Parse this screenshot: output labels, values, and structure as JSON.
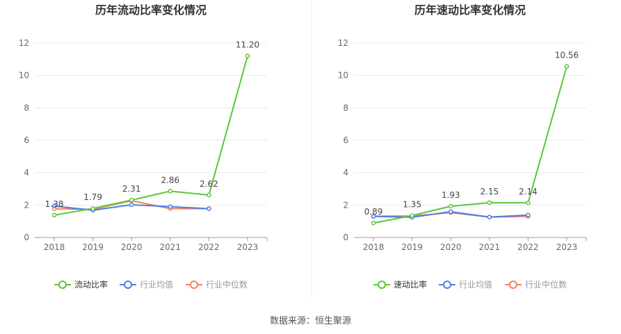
{
  "chart_data": [
    {
      "type": "line",
      "title": "历年流动比率变化情况",
      "categories": [
        "2018",
        "2019",
        "2020",
        "2021",
        "2022",
        "2023"
      ],
      "ylim": [
        0,
        12
      ],
      "yticks": [
        0,
        2,
        4,
        6,
        8,
        10,
        12
      ],
      "grid": true,
      "legend": "bottom",
      "series": [
        {
          "name": "流动比率",
          "color": "#5ac73a",
          "values": [
            1.38,
            1.79,
            2.31,
            2.86,
            2.62,
            11.2
          ],
          "labels": [
            "1.38",
            "1.79",
            "2.31",
            "2.86",
            "2.62",
            "11.20"
          ]
        },
        {
          "name": "行业均值",
          "color": "#4a7ee8",
          "values": [
            1.94,
            1.68,
            2.02,
            1.9,
            1.78,
            null
          ]
        },
        {
          "name": "行业中位数",
          "color": "#f0845a",
          "values": [
            1.77,
            1.74,
            2.27,
            1.78,
            1.78,
            null
          ]
        }
      ]
    },
    {
      "type": "line",
      "title": "历年速动比率变化情况",
      "categories": [
        "2018",
        "2019",
        "2020",
        "2021",
        "2022",
        "2023"
      ],
      "ylim": [
        0,
        12
      ],
      "yticks": [
        0,
        2,
        4,
        6,
        8,
        10,
        12
      ],
      "grid": true,
      "legend": "bottom",
      "series": [
        {
          "name": "速动比率",
          "color": "#5ac73a",
          "values": [
            0.89,
            1.35,
            1.93,
            2.15,
            2.14,
            10.56
          ],
          "labels": [
            "0.89",
            "1.35",
            "1.93",
            "2.15",
            "2.14",
            "10.56"
          ]
        },
        {
          "name": "行业均值",
          "color": "#4a7ee8",
          "values": [
            1.3,
            1.25,
            1.59,
            1.26,
            1.38,
            null
          ]
        },
        {
          "name": "行业中位数",
          "color": "#f0845a",
          "values": [
            1.31,
            1.33,
            1.53,
            1.26,
            1.3,
            null
          ]
        }
      ]
    }
  ],
  "source": "数据来源：恒生聚源"
}
